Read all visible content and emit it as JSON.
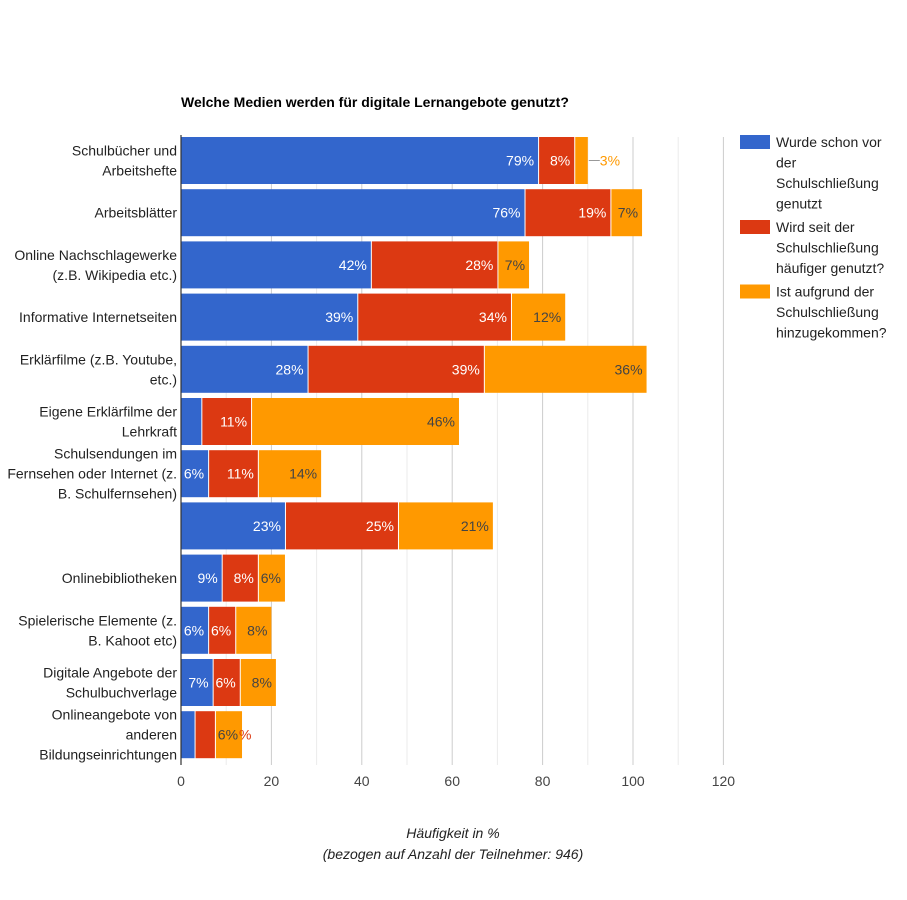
{
  "chart_data": {
    "type": "bar",
    "orientation": "horizontal",
    "stacked": true,
    "title": "Welche Medien werden für digitale Lernangebote genutzt?",
    "xlabel": "Häufigkeit in %",
    "xlabel_sub": "(bezogen auf Anzahl der Teilnehmer: 946)",
    "ylabel": "",
    "xlim": [
      0,
      120
    ],
    "x_ticks": [
      0,
      20,
      40,
      60,
      80,
      100,
      120
    ],
    "grid": true,
    "legend_position": "right",
    "categories": [
      [
        "Schulbücher und",
        "Arbeitshefte"
      ],
      [
        "Arbeitsblätter"
      ],
      [
        "Online Nachschlagewerke",
        "(z.B. Wikipedia etc.)"
      ],
      [
        "Informative Internetseiten"
      ],
      [
        "Erklärfilme (z.B. Youtube,",
        "etc.)"
      ],
      [
        "Eigene Erklärfilme der",
        "Lehrkraft"
      ],
      [
        "Schulsendungen im",
        "Fernsehen oder Internet (z.",
        "B. Schulfernsehen)"
      ],
      [],
      [
        "Onlinebibliotheken"
      ],
      [
        "Spielerische Elemente (z.",
        "B. Kahoot etc)"
      ],
      [
        "Digitale Angebote der",
        "Schulbuchverlage"
      ],
      [
        "Onlineangebote von",
        "anderen",
        "Bildungseinrichtungen"
      ]
    ],
    "series": [
      {
        "name": "Wurde schon vor der Schulschließung genutzt",
        "legend_lines": [
          "Wurde schon vor",
          "der",
          "Schulschließung",
          "genutzt"
        ],
        "color": "#3366cc",
        "label_color": "#ffffff",
        "values": [
          79,
          76,
          42,
          39,
          28,
          4.5,
          6,
          23,
          9,
          6,
          7,
          3
        ],
        "labels": [
          "79%",
          "76%",
          "42%",
          "39%",
          "28%",
          "",
          "6%",
          "23%",
          "9%",
          "6%",
          "7%",
          ""
        ]
      },
      {
        "name": "Wird seit der Schulschließung häufiger genutzt?",
        "legend_lines": [
          "Wird seit der",
          "Schulschließung",
          "häufiger genutzt?"
        ],
        "color": "#dc3912",
        "label_color": "#ffffff",
        "values": [
          8,
          19,
          28,
          34,
          39,
          11,
          11,
          25,
          8,
          6,
          6,
          4.5
        ],
        "labels": [
          "8%",
          "19%",
          "28%",
          "34%",
          "39%",
          "11%",
          "11%",
          "25%",
          "8%",
          "6%",
          "6%",
          ""
        ]
      },
      {
        "name": "Ist aufgrund der Schulschließung hinzugekommen?",
        "legend_lines": [
          "Ist aufgrund der",
          "Schulschließung",
          "hinzugekommen?"
        ],
        "color": "#ff9900",
        "label_color": "#444444",
        "values": [
          3,
          7,
          7,
          12,
          36,
          46,
          14,
          21,
          6,
          8,
          8,
          6
        ],
        "labels": [
          "3%",
          "7%",
          "7%",
          "12%",
          "36%",
          "46%",
          "14%",
          "21%",
          "6%",
          "8%",
          "8%",
          "6%"
        ]
      }
    ],
    "annotations": [
      {
        "category_index": 0,
        "series_index": 2,
        "text": "3%",
        "style": "outside-with-leader",
        "color": "#ff9900"
      },
      {
        "category_index": 11,
        "series_index": 1,
        "text": "%",
        "style": "clipped-outside",
        "color": "#dc3912"
      }
    ]
  }
}
